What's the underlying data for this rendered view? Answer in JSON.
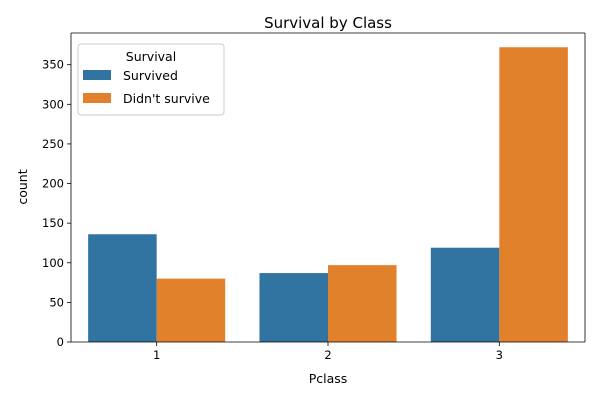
{
  "chart_data": {
    "type": "bar",
    "title": "Survival by Class",
    "xlabel": "Pclass",
    "ylabel": "count",
    "categories": [
      "1",
      "2",
      "3"
    ],
    "series": [
      {
        "name": "Survived",
        "values": [
          136,
          87,
          119
        ],
        "color": "#3274a1"
      },
      {
        "name": "Didn't survive",
        "values": [
          80,
          97,
          372
        ],
        "color": "#e1812c"
      }
    ],
    "ylim": [
      0,
      390
    ],
    "yticks": [
      0,
      50,
      100,
      150,
      200,
      250,
      300,
      350
    ],
    "grid": false,
    "legend": {
      "title": "Survival",
      "placement": "top-left"
    }
  }
}
